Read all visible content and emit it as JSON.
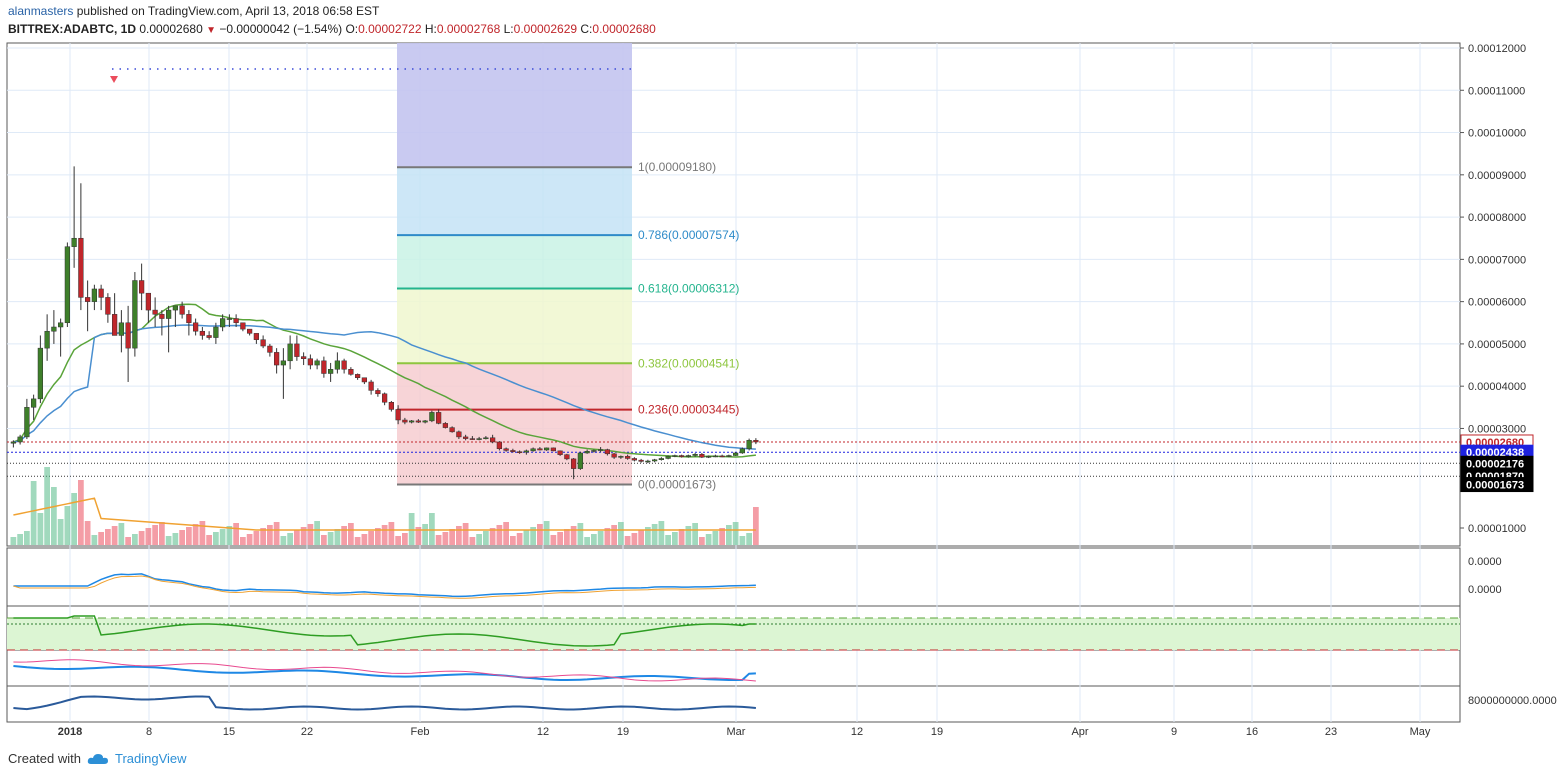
{
  "header": {
    "author": "alanmasters",
    "published": "published on TradingView.com, April 13, 2018 06:58 EST",
    "symbol": "BITTREX:ADABTC, 1D",
    "last": "0.00002680",
    "change": "−0.00000042 (−1.54%)",
    "o_label": "O:",
    "o": "0.00002722",
    "h_label": "H:",
    "h": "0.00002768",
    "l_label": "L:",
    "l": "0.00002629",
    "c_label": "C:",
    "c": "0.00002680"
  },
  "footer": {
    "created_with": "Created with",
    "brand": "TradingView"
  },
  "colors": {
    "up": "#53b987",
    "down": "#eb4d5c",
    "candle_up": "#3e7f2a",
    "candle_down": "#c0262b",
    "ma_green": "#5aa43a",
    "ma_blue": "#4a8fd0",
    "ma_orange": "#f0a232",
    "grid": "#dfeaf7"
  },
  "chart_data": {
    "type": "candlestick",
    "ylim": [
      1e-05,
      0.00012
    ],
    "price_ticks": [
      "0.00012000",
      "0.00011000",
      "0.00010000",
      "0.00009000",
      "0.00008000",
      "0.00007000",
      "0.00006000",
      "0.00005000",
      "0.00004000",
      "0.00003000",
      "0.00001000"
    ],
    "x_ticks": [
      "2018",
      "8",
      "15",
      "22",
      "Feb",
      "12",
      "19",
      "Mar",
      "12",
      "19",
      "Apr",
      "9",
      "16",
      "23",
      "May"
    ],
    "price_labels": [
      {
        "text": "0.00002680",
        "value": 2.68e-05,
        "bg": "#ffffff",
        "fg": "#c0262b"
      },
      {
        "text": "0.00002438",
        "value": 2.438e-05,
        "bg": "#1e22e0",
        "fg": "#ffffff"
      },
      {
        "text": "0.00002176",
        "value": 2.176e-05,
        "bg": "#000000",
        "fg": "#ffffff"
      },
      {
        "text": "0.00001870",
        "value": 1.87e-05,
        "bg": "#000000",
        "fg": "#ffffff"
      },
      {
        "text": "0.00001673",
        "value": 1.673e-05,
        "bg": "#000000",
        "fg": "#ffffff"
      }
    ],
    "fib_levels": [
      {
        "ratio": "1",
        "text": "1(0.00009180)",
        "value": 9.18e-05,
        "color": "#787878",
        "fill": "#e3e3e3"
      },
      {
        "ratio": "0.786",
        "text": "0.786(0.00007574)",
        "value": 7.574e-05,
        "color": "#2e8bc9",
        "fill": "#c4e3f6"
      },
      {
        "ratio": "0.618",
        "text": "0.618(0.00006312)",
        "value": 6.312e-05,
        "color": "#24b48e",
        "fill": "#c9f2e5"
      },
      {
        "ratio": "0.382",
        "text": "0.382(0.00004541)",
        "value": 4.541e-05,
        "color": "#8ec63f",
        "fill": "#f0f7cf"
      },
      {
        "ratio": "0.236",
        "text": "0.236(0.00003445)",
        "value": 3.445e-05,
        "color": "#c0262b",
        "fill": "#f6cdd0"
      },
      {
        "ratio": "0",
        "text": "0(0.00001673)",
        "value": 1.673e-05,
        "color": "#787878",
        "fill": "#f6cdd0"
      }
    ],
    "fib_top_fill": "#c3c4ef",
    "indicator_labels": {
      "macd_a": "0.0000",
      "macd_b": "0.0000",
      "volume": "8000000000.0000"
    },
    "series": [
      {
        "name": "OHLC",
        "values": [
          [
            2.65e-05,
            2.72e-05,
            2.55e-05,
            2.68e-05
          ],
          [
            2.68e-05,
            2.85e-05,
            2.62e-05,
            2.8e-05
          ],
          [
            2.8e-05,
            3.7e-05,
            2.75e-05,
            3.5e-05
          ],
          [
            3.5e-05,
            3.8e-05,
            3.2e-05,
            3.7e-05
          ],
          [
            3.7e-05,
            5.2e-05,
            3.6e-05,
            4.9e-05
          ],
          [
            4.9e-05,
            5.7e-05,
            4.6e-05,
            5.3e-05
          ],
          [
            5.3e-05,
            5.8e-05,
            5e-05,
            5.4e-05
          ],
          [
            5.4e-05,
            5.6e-05,
            4.7e-05,
            5.5e-05
          ],
          [
            5.5e-05,
            7.4e-05,
            5.4e-05,
            7.3e-05
          ],
          [
            7.3e-05,
            9.2e-05,
            6.8e-05,
            7.5e-05
          ],
          [
            7.5e-05,
            8.8e-05,
            5.8e-05,
            6.1e-05
          ],
          [
            6.1e-05,
            6.5e-05,
            5.3e-05,
            6e-05
          ],
          [
            6e-05,
            6.4e-05,
            5.8e-05,
            6.3e-05
          ],
          [
            6.3e-05,
            6.4e-05,
            5.8e-05,
            6.1e-05
          ],
          [
            6.1e-05,
            6.2e-05,
            5.5e-05,
            5.7e-05
          ],
          [
            5.7e-05,
            6.2e-05,
            5.2e-05,
            5.2e-05
          ],
          [
            5.2e-05,
            5.8e-05,
            4.8e-05,
            5.5e-05
          ],
          [
            5.5e-05,
            5.9e-05,
            4.1e-05,
            4.9e-05
          ],
          [
            4.9e-05,
            6.7e-05,
            4.7e-05,
            6.5e-05
          ],
          [
            6.5e-05,
            6.9e-05,
            5.8e-05,
            6.2e-05
          ],
          [
            6.2e-05,
            6.2e-05,
            5.5e-05,
            5.8e-05
          ],
          [
            5.8e-05,
            6.1e-05,
            5.4e-05,
            5.7e-05
          ],
          [
            5.7e-05,
            5.8e-05,
            5.2e-05,
            5.6e-05
          ],
          [
            5.6e-05,
            5.9e-05,
            4.8e-05,
            5.8e-05
          ],
          [
            5.8e-05,
            5.9e-05,
            5.4e-05,
            5.9e-05
          ],
          [
            5.9e-05,
            6e-05,
            5.6e-05,
            5.7e-05
          ],
          [
            5.7e-05,
            5.8e-05,
            5.2e-05,
            5.5e-05
          ],
          [
            5.5e-05,
            5.6e-05,
            5.2e-05,
            5.3e-05
          ],
          [
            5.3e-05,
            5.4e-05,
            5.1e-05,
            5.2e-05
          ],
          [
            5.2e-05,
            5.3e-05,
            5.1e-05,
            5.15e-05
          ],
          [
            5.15e-05,
            5.5e-05,
            5e-05,
            5.4e-05
          ],
          [
            5.4e-05,
            5.7e-05,
            5.3e-05,
            5.6e-05
          ],
          [
            5.6e-05,
            5.7e-05,
            5.4e-05,
            5.6e-05
          ],
          [
            5.6e-05,
            5.7e-05,
            5.4e-05,
            5.5e-05
          ],
          [
            5.5e-05,
            5.5e-05,
            5.3e-05,
            5.35e-05
          ],
          [
            5.35e-05,
            5.35e-05,
            5.2e-05,
            5.25e-05
          ],
          [
            5.25e-05,
            5.25e-05,
            5e-05,
            5.1e-05
          ],
          [
            5.1e-05,
            5.2e-05,
            4.9e-05,
            4.95e-05
          ],
          [
            4.95e-05,
            5e-05,
            4.7e-05,
            4.8e-05
          ],
          [
            4.8e-05,
            4.9e-05,
            4.3e-05,
            4.5e-05
          ],
          [
            4.5e-05,
            4.9e-05,
            3.7e-05,
            4.6e-05
          ],
          [
            4.6e-05,
            5.2e-05,
            4.4e-05,
            5e-05
          ],
          [
            5e-05,
            5.2e-05,
            4.6e-05,
            4.7e-05
          ],
          [
            4.7e-05,
            4.8e-05,
            4.5e-05,
            4.65e-05
          ],
          [
            4.65e-05,
            4.75e-05,
            4.4e-05,
            4.5e-05
          ],
          [
            4.5e-05,
            4.65e-05,
            4.4e-05,
            4.6e-05
          ],
          [
            4.6e-05,
            4.7e-05,
            4.2e-05,
            4.3e-05
          ],
          [
            4.3e-05,
            4.55e-05,
            4.1e-05,
            4.4e-05
          ],
          [
            4.4e-05,
            4.8e-05,
            4.3e-05,
            4.6e-05
          ],
          [
            4.6e-05,
            4.65e-05,
            4.3e-05,
            4.4e-05
          ],
          [
            4.4e-05,
            4.45e-05,
            4.25e-05,
            4.28e-05
          ],
          [
            4.28e-05,
            4.3e-05,
            4.15e-05,
            4.2e-05
          ],
          [
            4.2e-05,
            4.2e-05,
            4.05e-05,
            4.1e-05
          ],
          [
            4.1e-05,
            4.15e-05,
            3.8e-05,
            3.9e-05
          ],
          [
            3.9e-05,
            3.95e-05,
            3.75e-05,
            3.82e-05
          ],
          [
            3.82e-05,
            3.85e-05,
            3.55e-05,
            3.62e-05
          ],
          [
            3.62e-05,
            3.65e-05,
            3.4e-05,
            3.45e-05
          ],
          [
            3.45e-05,
            3.55e-05,
            3.1e-05,
            3.2e-05
          ],
          [
            3.2e-05,
            3.25e-05,
            3.1e-05,
            3.15e-05
          ],
          [
            3.15e-05,
            3.2e-05,
            3.12e-05,
            3.18e-05
          ],
          [
            3.18e-05,
            3.22e-05,
            3.13e-05,
            3.15e-05
          ],
          [
            3.15e-05,
            3.2e-05,
            3.12e-05,
            3.18e-05
          ],
          [
            3.18e-05,
            3.42e-05,
            3.15e-05,
            3.38e-05
          ],
          [
            3.38e-05,
            3.45e-05,
            3.1e-05,
            3.12e-05
          ],
          [
            3.12e-05,
            3.15e-05,
            3e-05,
            3.02e-05
          ],
          [
            3.02e-05,
            3.05e-05,
            2.9e-05,
            2.92e-05
          ],
          [
            2.92e-05,
            2.95e-05,
            2.75e-05,
            2.8e-05
          ],
          [
            2.8e-05,
            2.85e-05,
            2.72e-05,
            2.76e-05
          ],
          [
            2.76e-05,
            2.82e-05,
            2.73e-05,
            2.75e-05
          ],
          [
            2.75e-05,
            2.8e-05,
            2.72e-05,
            2.76e-05
          ],
          [
            2.76e-05,
            2.82e-05,
            2.74e-05,
            2.78e-05
          ],
          [
            2.78e-05,
            2.85e-05,
            2.65e-05,
            2.68e-05
          ],
          [
            2.68e-05,
            2.7e-05,
            2.48e-05,
            2.52e-05
          ],
          [
            2.52e-05,
            2.55e-05,
            2.45e-05,
            2.48e-05
          ],
          [
            2.48e-05,
            2.52e-05,
            2.43e-05,
            2.45e-05
          ],
          [
            2.45e-05,
            2.48e-05,
            2.4e-05,
            2.44e-05
          ],
          [
            2.44e-05,
            2.5e-05,
            2.38e-05,
            2.47e-05
          ],
          [
            2.47e-05,
            2.55e-05,
            2.45e-05,
            2.52e-05
          ],
          [
            2.52e-05,
            2.56e-05,
            2.48e-05,
            2.49e-05
          ],
          [
            2.49e-05,
            2.55e-05,
            2.47e-05,
            2.54e-05
          ],
          [
            2.54e-05,
            2.55e-05,
            2.46e-05,
            2.47e-05
          ],
          [
            2.47e-05,
            2.48e-05,
            2.35e-05,
            2.38e-05
          ],
          [
            2.38e-05,
            2.4e-05,
            2.25e-05,
            2.28e-05
          ],
          [
            2.28e-05,
            2.3e-05,
            1.8e-05,
            2.05e-05
          ],
          [
            2.05e-05,
            2.45e-05,
            2.02e-05,
            2.42e-05
          ],
          [
            2.42e-05,
            2.5e-05,
            2.4e-05,
            2.46e-05
          ],
          [
            2.46e-05,
            2.5e-05,
            2.43e-05,
            2.48e-05
          ],
          [
            2.48e-05,
            2.56e-05,
            2.44e-05,
            2.5e-05
          ],
          [
            2.5e-05,
            2.52e-05,
            2.36e-05,
            2.4e-05
          ],
          [
            2.4e-05,
            2.42e-05,
            2.28e-05,
            2.32e-05
          ],
          [
            2.32e-05,
            2.36e-05,
            2.28e-05,
            2.34e-05
          ],
          [
            2.34e-05,
            2.38e-05,
            2.26e-05,
            2.29e-05
          ],
          [
            2.29e-05,
            2.32e-05,
            2.22e-05,
            2.25e-05
          ],
          [
            2.25e-05,
            2.28e-05,
            2.19e-05,
            2.22e-05
          ],
          [
            2.22e-05,
            2.26e-05,
            2.18e-05,
            2.23e-05
          ],
          [
            2.23e-05,
            2.28e-05,
            2.2e-05,
            2.26e-05
          ],
          [
            2.26e-05,
            2.32e-05,
            2.24e-05,
            2.29e-05
          ],
          [
            2.29e-05,
            2.36e-05,
            2.27e-05,
            2.34e-05
          ],
          [
            2.34e-05,
            2.38e-05,
            2.32e-05,
            2.36e-05
          ],
          [
            2.36e-05,
            2.38e-05,
            2.31e-05,
            2.33e-05
          ],
          [
            2.33e-05,
            2.38e-05,
            2.31e-05,
            2.36e-05
          ],
          [
            2.36e-05,
            2.42e-05,
            2.33e-05,
            2.39e-05
          ],
          [
            2.39e-05,
            2.42e-05,
            2.3e-05,
            2.32e-05
          ],
          [
            2.32e-05,
            2.36e-05,
            2.3e-05,
            2.34e-05
          ],
          [
            2.34e-05,
            2.38e-05,
            2.32e-05,
            2.35e-05
          ],
          [
            2.35e-05,
            2.38e-05,
            2.32e-05,
            2.34e-05
          ],
          [
            2.34e-05,
            2.38e-05,
            2.32e-05,
            2.36e-05
          ],
          [
            2.36e-05,
            2.44e-05,
            2.35e-05,
            2.42e-05
          ],
          [
            2.42e-05,
            2.55e-05,
            2.4e-05,
            2.52e-05
          ],
          [
            2.52e-05,
            2.76e-05,
            2.48e-05,
            2.72e-05
          ],
          [
            2.72e-05,
            2.77e-05,
            2.63e-05,
            2.68e-05
          ]
        ]
      }
    ]
  }
}
